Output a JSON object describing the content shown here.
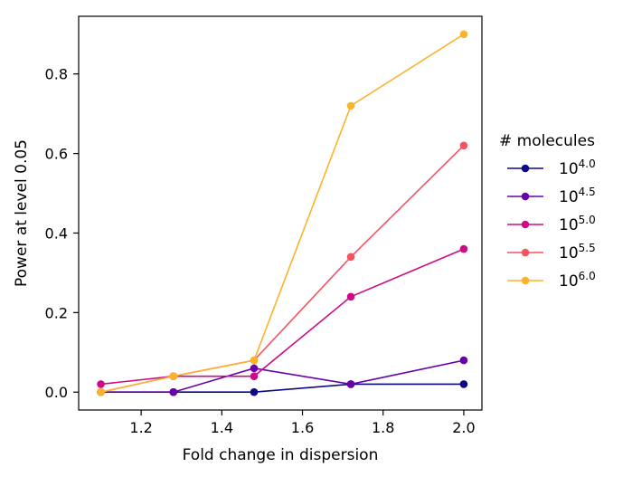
{
  "chart_data": {
    "type": "line",
    "title": "",
    "xlabel": "Fold change in dispersion",
    "ylabel": "Power at level 0.05",
    "xlim": [
      1.045,
      2.045
    ],
    "ylim": [
      -0.045,
      0.945
    ],
    "xticks": [
      1.2,
      1.4,
      1.6,
      1.8,
      2.0
    ],
    "xtick_labels": [
      "1.2",
      "1.4",
      "1.6",
      "1.8",
      "2.0"
    ],
    "yticks": [
      0.0,
      0.2,
      0.4,
      0.6,
      0.8
    ],
    "ytick_labels": [
      "0.0",
      "0.2",
      "0.4",
      "0.6",
      "0.8"
    ],
    "x": [
      1.1,
      1.28,
      1.48,
      1.72,
      2.0
    ],
    "legend": {
      "title": "# molecules",
      "placement": "center-right, outside plot"
    },
    "series": [
      {
        "name": "10^4.0",
        "base": "10",
        "exponent": "4.0",
        "color": "#0d0887",
        "values": [
          0.0,
          0.0,
          0.0,
          0.02,
          0.02
        ]
      },
      {
        "name": "10^4.5",
        "base": "10",
        "exponent": "4.5",
        "color": "#6a00a8",
        "values": [
          0.0,
          0.0,
          0.06,
          0.02,
          0.08
        ]
      },
      {
        "name": "10^5.0",
        "base": "10",
        "exponent": "5.0",
        "color": "#cc0c85",
        "values": [
          0.02,
          0.04,
          0.04,
          0.24,
          0.36
        ]
      },
      {
        "name": "10^5.5",
        "base": "10",
        "exponent": "5.5",
        "color": "#f5545f",
        "values": [
          0.0,
          0.04,
          0.08,
          0.34,
          0.62
        ]
      },
      {
        "name": "10^6.0",
        "base": "10",
        "exponent": "6.0",
        "color": "#fcb22a",
        "values": [
          0.0,
          0.04,
          0.08,
          0.72,
          0.9
        ]
      }
    ]
  }
}
